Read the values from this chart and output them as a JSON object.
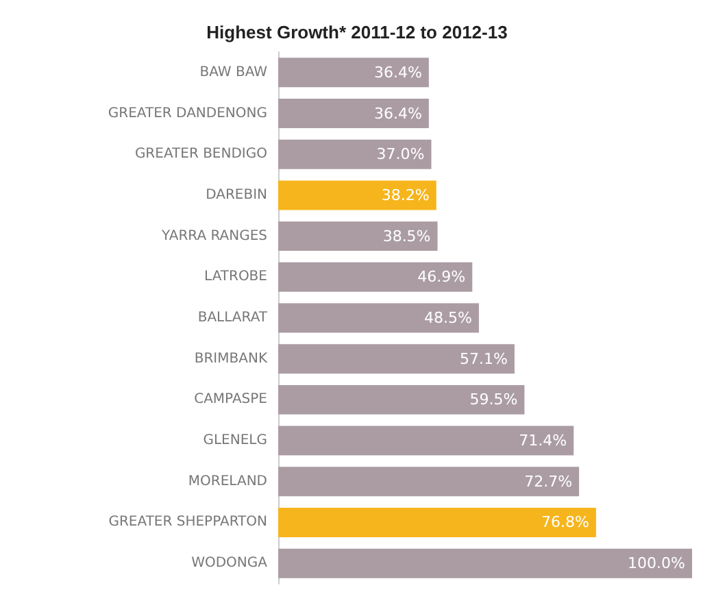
{
  "chart_data": {
    "type": "bar",
    "orientation": "horizontal",
    "title": "Highest Growth* 2011-12 to 2012-13",
    "categories": [
      "BAW BAW",
      "GREATER DANDENONG",
      "GREATER BENDIGO",
      "DAREBIN",
      "YARRA RANGES",
      "LATROBE",
      "BALLARAT",
      "BRIMBANK",
      "CAMPASPE",
      "GLENELG",
      "MORELAND",
      "GREATER SHEPPARTON",
      "WODONGA"
    ],
    "values": [
      36.4,
      36.4,
      37.0,
      38.2,
      38.5,
      46.9,
      48.5,
      57.1,
      59.5,
      71.4,
      72.7,
      76.8,
      100.0
    ],
    "value_labels": [
      "36.4%",
      "36.4%",
      "37.0%",
      "38.2%",
      "38.5%",
      "46.9%",
      "48.5%",
      "57.1%",
      "59.5%",
      "71.4%",
      "72.7%",
      "76.8%",
      "100.0%"
    ],
    "colors": [
      "#ab9ca4",
      "#ab9ca4",
      "#ab9ca4",
      "#f6b51c",
      "#ab9ca4",
      "#ab9ca4",
      "#ab9ca4",
      "#ab9ca4",
      "#ab9ca4",
      "#ab9ca4",
      "#ab9ca4",
      "#f6b51c",
      "#ab9ca4"
    ]
  }
}
